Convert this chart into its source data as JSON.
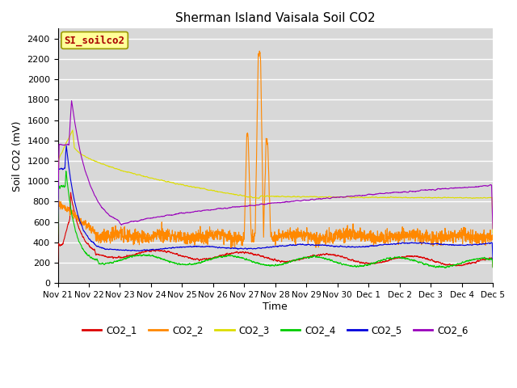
{
  "title": "Sherman Island Vaisala Soil CO2",
  "ylabel": "Soil CO2 (mV)",
  "xlabel": "Time",
  "watermark": "SI_soilco2",
  "ylim": [
    0,
    2500
  ],
  "yticks": [
    0,
    200,
    400,
    600,
    800,
    1000,
    1200,
    1400,
    1600,
    1800,
    2000,
    2200,
    2400
  ],
  "background_color": "#d8d8d8",
  "plot_bg_color": "#d8d8d8",
  "grid_color": "#ffffff",
  "legend_labels": [
    "CO2_1",
    "CO2_2",
    "CO2_3",
    "CO2_4",
    "CO2_5",
    "CO2_6"
  ],
  "line_colors": [
    "#dd0000",
    "#ff8800",
    "#dddd00",
    "#00cc00",
    "#0000dd",
    "#9900bb"
  ],
  "x_tick_labels": [
    "Nov 21",
    "Nov 22",
    "Nov 23",
    "Nov 24",
    "Nov 25",
    "Nov 26",
    "Nov 27",
    "Nov 28",
    "Nov 29",
    "Nov 30",
    "Dec 1",
    "Dec 2",
    "Dec 3",
    "Dec 4",
    "Dec 5"
  ],
  "num_points": 3000,
  "figsize": [
    6.4,
    4.8
  ],
  "dpi": 100
}
